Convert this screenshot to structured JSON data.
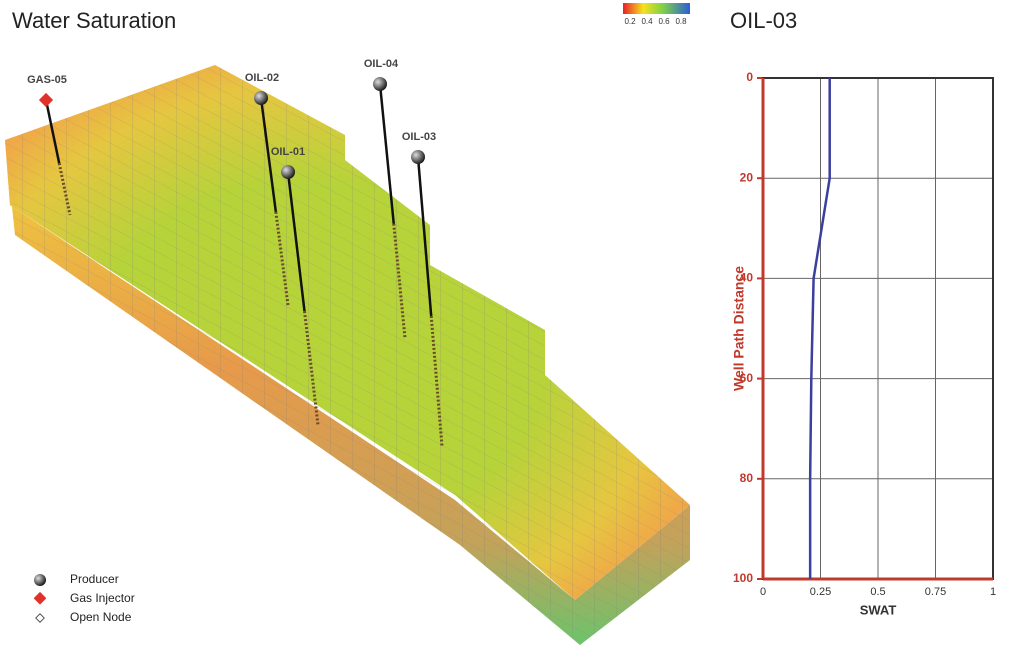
{
  "reservoir": {
    "title": "Water Saturation",
    "colorbar": {
      "ticks": [
        0.2,
        0.4,
        0.6,
        0.8
      ]
    },
    "wells": [
      {
        "label": "GAS-05"
      },
      {
        "label": "OIL-02"
      },
      {
        "label": "OIL-04"
      },
      {
        "label": "OIL-01"
      },
      {
        "label": "OIL-03"
      }
    ],
    "legend": [
      "Producer",
      "Gas Injector",
      "Open Node"
    ]
  },
  "chart_data": {
    "type": "line",
    "title": "OIL-03",
    "x_label": "SWAT",
    "y_label": "Well Path Distance",
    "x": [
      0.29,
      0.29,
      0.22,
      0.21,
      0.205,
      0.205
    ],
    "y": [
      0,
      20,
      40,
      60,
      80,
      100
    ],
    "color": "#3b3f9e",
    "xlim": [
      0,
      1
    ],
    "xticks": [
      0,
      0.25,
      0.5,
      0.75,
      1
    ],
    "ylim": [
      0,
      100
    ],
    "yticks": [
      0,
      20,
      40,
      60,
      80,
      100
    ],
    "y_inverted": true,
    "grid": true
  }
}
